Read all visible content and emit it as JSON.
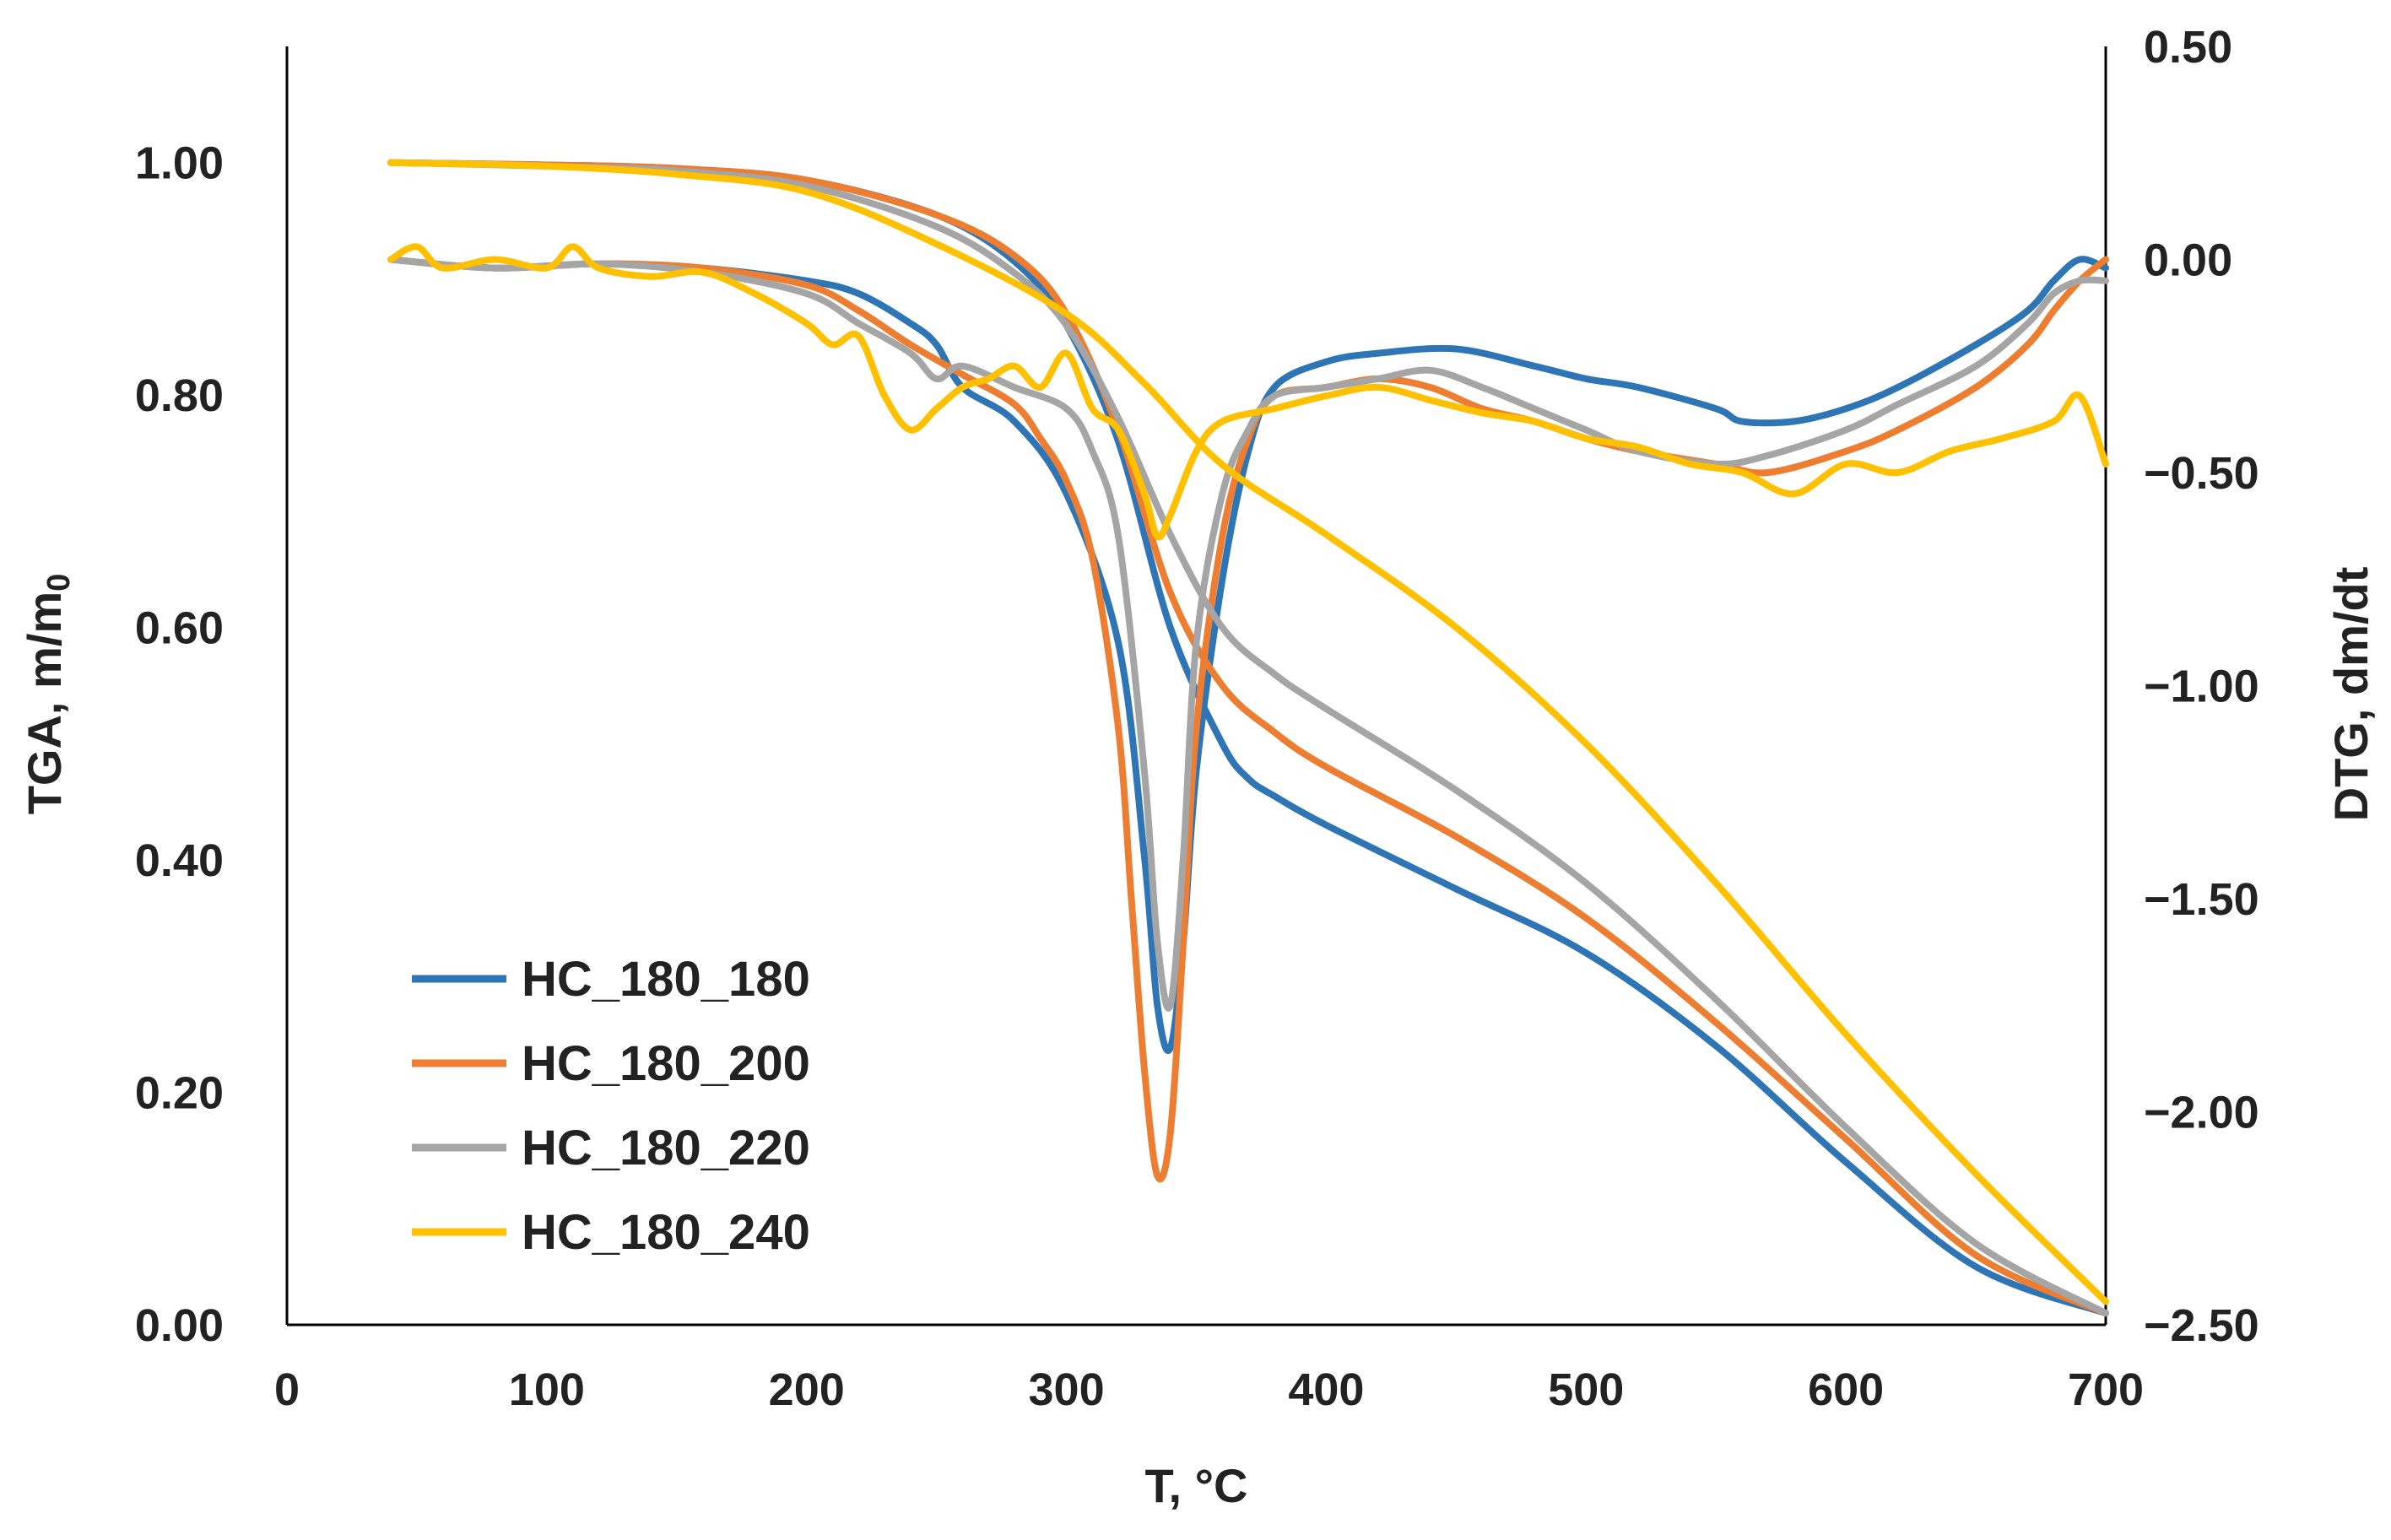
{
  "chart_data": {
    "type": "line",
    "title": "",
    "xlabel": "T, °C",
    "ylabel_left": "TGA, m/m",
    "ylabel_left_sub": "0",
    "ylabel_right": "DTG, dm/dt",
    "xlim": [
      0,
      700
    ],
    "ylim_left": [
      0.0,
      1.1
    ],
    "ylim_right": [
      -2.5,
      0.5
    ],
    "x_ticks": [
      "0",
      "100",
      "200",
      "300",
      "400",
      "500",
      "600",
      "700"
    ],
    "y_left_ticks": [
      "0.00",
      "0.20",
      "0.40",
      "0.60",
      "0.80",
      "1.00"
    ],
    "y_right_ticks": [
      "−2.50",
      "−2.00",
      "−1.50",
      "−1.00",
      "−0.50",
      "0.00",
      "0.50"
    ],
    "grid": false,
    "legend_position": "lower-left",
    "series": [
      {
        "name": "HC_180_180",
        "color": "#2E75B6",
        "tga": {
          "x": [
            40,
            100,
            150,
            200,
            250,
            280,
            300,
            320,
            340,
            360,
            370,
            380,
            400,
            450,
            500,
            550,
            600,
            650,
            700
          ],
          "y": [
            1.0,
            0.998,
            0.995,
            0.985,
            0.955,
            0.915,
            0.86,
            0.76,
            0.6,
            0.5,
            0.47,
            0.455,
            0.43,
            0.375,
            0.32,
            0.24,
            0.14,
            0.05,
            0.01
          ]
        },
        "dtg": {
          "x": [
            40,
            80,
            120,
            160,
            200,
            220,
            240,
            250,
            260,
            280,
            300,
            320,
            330,
            335,
            340,
            345,
            350,
            360,
            370,
            380,
            400,
            420,
            450,
            480,
            500,
            520,
            550,
            560,
            580,
            600,
            620,
            650,
            670,
            680,
            690,
            700
          ],
          "y": [
            0.0,
            -0.02,
            -0.01,
            -0.02,
            -0.05,
            -0.08,
            -0.15,
            -0.2,
            -0.3,
            -0.38,
            -0.55,
            -0.9,
            -1.4,
            -1.75,
            -1.85,
            -1.6,
            -1.2,
            -0.75,
            -0.45,
            -0.3,
            -0.24,
            -0.22,
            -0.21,
            -0.25,
            -0.28,
            -0.3,
            -0.35,
            -0.38,
            -0.38,
            -0.35,
            -0.3,
            -0.2,
            -0.12,
            -0.05,
            0.0,
            -0.02
          ]
        }
      },
      {
        "name": "HC_180_200",
        "color": "#ED7D31",
        "tga": {
          "x": [
            40,
            100,
            150,
            200,
            250,
            280,
            300,
            320,
            340,
            360,
            380,
            400,
            450,
            500,
            550,
            600,
            650,
            700
          ],
          "y": [
            1.0,
            0.998,
            0.995,
            0.985,
            0.955,
            0.92,
            0.87,
            0.77,
            0.63,
            0.55,
            0.51,
            0.48,
            0.42,
            0.35,
            0.26,
            0.16,
            0.06,
            0.01
          ]
        },
        "dtg": {
          "x": [
            40,
            80,
            120,
            160,
            200,
            220,
            240,
            260,
            280,
            290,
            300,
            310,
            320,
            325,
            330,
            335,
            340,
            345,
            350,
            360,
            370,
            380,
            400,
            420,
            440,
            460,
            480,
            500,
            520,
            550,
            570,
            600,
            620,
            650,
            670,
            680,
            690,
            700
          ],
          "y": [
            0.0,
            -0.02,
            -0.01,
            -0.02,
            -0.06,
            -0.12,
            -0.2,
            -0.27,
            -0.34,
            -0.42,
            -0.52,
            -0.7,
            -1.1,
            -1.5,
            -1.9,
            -2.15,
            -2.05,
            -1.6,
            -1.1,
            -0.65,
            -0.42,
            -0.32,
            -0.3,
            -0.28,
            -0.3,
            -0.35,
            -0.38,
            -0.42,
            -0.45,
            -0.48,
            -0.5,
            -0.45,
            -0.4,
            -0.3,
            -0.2,
            -0.12,
            -0.05,
            0.0
          ]
        }
      },
      {
        "name": "HC_180_220",
        "color": "#A5A5A5",
        "tga": {
          "x": [
            40,
            100,
            150,
            200,
            250,
            280,
            300,
            320,
            340,
            360,
            380,
            400,
            450,
            500,
            550,
            600,
            650,
            700
          ],
          "y": [
            1.0,
            0.997,
            0.993,
            0.98,
            0.945,
            0.905,
            0.86,
            0.78,
            0.68,
            0.6,
            0.56,
            0.53,
            0.46,
            0.38,
            0.28,
            0.17,
            0.07,
            0.01
          ]
        },
        "dtg": {
          "x": [
            40,
            80,
            120,
            160,
            200,
            220,
            240,
            250,
            260,
            280,
            300,
            310,
            320,
            330,
            335,
            340,
            345,
            350,
            360,
            370,
            380,
            400,
            420,
            440,
            460,
            480,
            500,
            520,
            550,
            570,
            600,
            620,
            650,
            670,
            680,
            690,
            700
          ],
          "y": [
            0.0,
            -0.02,
            -0.01,
            -0.03,
            -0.08,
            -0.15,
            -0.22,
            -0.28,
            -0.25,
            -0.3,
            -0.35,
            -0.45,
            -0.65,
            -1.2,
            -1.6,
            -1.75,
            -1.4,
            -0.9,
            -0.55,
            -0.4,
            -0.32,
            -0.3,
            -0.28,
            -0.26,
            -0.3,
            -0.35,
            -0.4,
            -0.45,
            -0.48,
            -0.46,
            -0.4,
            -0.34,
            -0.25,
            -0.15,
            -0.08,
            -0.05,
            -0.05
          ]
        }
      },
      {
        "name": "HC_180_240",
        "color": "#FFC000",
        "tga": {
          "x": [
            40,
            100,
            150,
            200,
            250,
            300,
            330,
            360,
            400,
            450,
            500,
            550,
            600,
            650,
            700
          ],
          "y": [
            1.0,
            0.997,
            0.99,
            0.975,
            0.93,
            0.87,
            0.81,
            0.74,
            0.68,
            0.6,
            0.5,
            0.38,
            0.25,
            0.13,
            0.02
          ]
        },
        "dtg": {
          "x": [
            40,
            50,
            60,
            80,
            100,
            110,
            120,
            140,
            160,
            180,
            200,
            210,
            220,
            230,
            240,
            250,
            260,
            270,
            280,
            290,
            300,
            310,
            320,
            330,
            335,
            340,
            350,
            360,
            380,
            400,
            420,
            440,
            460,
            480,
            500,
            520,
            540,
            560,
            580,
            600,
            620,
            640,
            660,
            680,
            690,
            700
          ],
          "y": [
            0.0,
            0.03,
            -0.02,
            0.0,
            -0.02,
            0.03,
            -0.02,
            -0.04,
            -0.03,
            -0.08,
            -0.15,
            -0.2,
            -0.18,
            -0.32,
            -0.4,
            -0.35,
            -0.3,
            -0.28,
            -0.25,
            -0.3,
            -0.22,
            -0.35,
            -0.4,
            -0.55,
            -0.65,
            -0.6,
            -0.45,
            -0.38,
            -0.35,
            -0.32,
            -0.3,
            -0.33,
            -0.36,
            -0.38,
            -0.42,
            -0.44,
            -0.48,
            -0.5,
            -0.55,
            -0.48,
            -0.5,
            -0.45,
            -0.42,
            -0.38,
            -0.32,
            -0.48
          ]
        }
      }
    ]
  }
}
